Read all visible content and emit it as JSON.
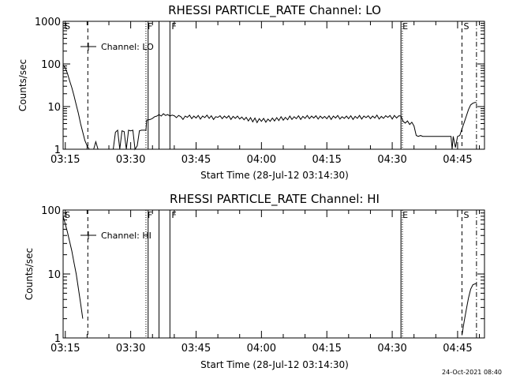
{
  "footer": {
    "timestamp": "24-Oct-2021 08:40"
  },
  "chart_data": [
    {
      "type": "line",
      "title": "RHESSI PARTICLE_RATE Channel: LO",
      "xlabel": "Start Time (28-Jul-12 03:14:30)",
      "ylabel": "Counts/sec",
      "xlim": [
        "03:14:30",
        "04:51:10"
      ],
      "ylim": [
        1,
        1000
      ],
      "yscale": "log",
      "grid": false,
      "legend": {
        "position": "top-left",
        "label": "Channel: LO"
      },
      "x_ticks": [
        "03:15",
        "03:30",
        "03:45",
        "04:00",
        "04:15",
        "04:30",
        "04:45"
      ],
      "y_ticks": [
        "1",
        "10",
        "100",
        "1000"
      ],
      "markers": [
        {
          "time": "03:20:10",
          "label": "",
          "style": "dashed"
        },
        {
          "time": "03:33:30",
          "label": "F",
          "style": "dotted"
        },
        {
          "time": "03:34:00",
          "label": "",
          "style": "solid"
        },
        {
          "time": "03:36:30",
          "label": "",
          "style": "solid"
        },
        {
          "time": "03:39:00",
          "label": "F",
          "style": "solid"
        },
        {
          "time": "04:32:00",
          "label": "E",
          "style": "solid"
        },
        {
          "time": "04:32:20",
          "label": "",
          "style": "dotted"
        },
        {
          "time": "04:46:00",
          "label": "S",
          "style": "dashed"
        },
        {
          "time": "04:49:20",
          "label": "",
          "style": "dashdot"
        }
      ],
      "edge_labels": [
        {
          "label": "S",
          "side": "left"
        }
      ],
      "series": [
        {
          "segments": [
            [
              [
                "03:14:30",
                95
              ],
              [
                "03:15:00",
                80
              ],
              [
                "03:15:30",
                60
              ],
              [
                "03:16:00",
                40
              ],
              [
                "03:16:30",
                28
              ],
              [
                "03:17:00",
                18
              ],
              [
                "03:17:30",
                11
              ],
              [
                "03:18:00",
                7
              ],
              [
                "03:18:30",
                4
              ],
              [
                "03:19:00",
                2.5
              ],
              [
                "03:19:30",
                1.6
              ],
              [
                "03:20:00",
                1.2
              ],
              [
                "03:20:30",
                1
              ]
            ],
            [
              [
                "03:21:30",
                1
              ],
              [
                "03:22:00",
                1.5
              ],
              [
                "03:22:30",
                1
              ]
            ],
            [
              [
                "03:26:00",
                1
              ],
              [
                "03:26:30",
                2.5
              ],
              [
                "03:27:00",
                2.8
              ],
              [
                "03:27:30",
                1
              ],
              [
                "03:28:00",
                2.7
              ],
              [
                "03:28:30",
                2.6
              ],
              [
                "03:29:00",
                1
              ],
              [
                "03:29:30",
                2.8
              ],
              [
                "03:30:00",
                2.7
              ],
              [
                "03:30:30",
                2.8
              ],
              [
                "03:31:00",
                1
              ],
              [
                "03:31:30",
                1.2
              ],
              [
                "03:32:00",
                2.7
              ],
              [
                "03:32:30",
                2.8
              ],
              [
                "03:33:30",
                2.8
              ],
              [
                "03:33:40",
                4.8
              ],
              [
                "03:34:30",
                5
              ],
              [
                "03:35:00",
                5.3
              ],
              [
                "03:35:30",
                5.8
              ],
              [
                "03:36:00",
                6
              ],
              [
                "03:36:30",
                6.5
              ],
              [
                "03:37:00",
                6
              ],
              [
                "03:37:30",
                6.8
              ],
              [
                "03:38:00",
                6.2
              ],
              [
                "03:38:30",
                6.5
              ],
              [
                "03:39:00",
                6
              ],
              [
                "03:39:30",
                6.3
              ],
              [
                "03:40:00",
                6.1
              ],
              [
                "03:40:30",
                5.5
              ],
              [
                "03:41:00",
                6.2
              ],
              [
                "03:41:30",
                5.8
              ],
              [
                "03:42:00",
                5
              ],
              [
                "03:42:30",
                6
              ],
              [
                "03:43:00",
                5.6
              ],
              [
                "03:43:30",
                6.3
              ],
              [
                "03:44:00",
                5.2
              ],
              [
                "03:44:30",
                6
              ],
              [
                "03:45:00",
                5.4
              ],
              [
                "03:45:30",
                6.2
              ],
              [
                "03:46:00",
                5.1
              ],
              [
                "03:46:30",
                6
              ],
              [
                "03:47:00",
                5.5
              ],
              [
                "03:47:30",
                6.3
              ],
              [
                "03:48:00",
                5.3
              ],
              [
                "03:48:30",
                6.1
              ],
              [
                "03:49:00",
                5
              ],
              [
                "03:49:30",
                5.8
              ],
              [
                "03:50:00",
                5.6
              ],
              [
                "03:50:30",
                6.1
              ],
              [
                "03:51:00",
                5.2
              ],
              [
                "03:51:30",
                6
              ],
              [
                "03:52:00",
                5.4
              ],
              [
                "03:52:30",
                6.1
              ],
              [
                "03:53:00",
                5
              ],
              [
                "03:53:30",
                5.9
              ],
              [
                "03:54:00",
                5.3
              ],
              [
                "03:54:30",
                6
              ],
              [
                "03:55:00",
                5.1
              ],
              [
                "03:55:30",
                5.7
              ],
              [
                "03:56:00",
                4.9
              ],
              [
                "03:56:30",
                5.6
              ],
              [
                "03:57:00",
                4.6
              ],
              [
                "03:57:30",
                5.5
              ],
              [
                "03:58:00",
                4.4
              ],
              [
                "03:58:30",
                5.4
              ],
              [
                "03:59:00",
                4.2
              ],
              [
                "03:59:30",
                5.2
              ],
              [
                "04:00:00",
                4.5
              ],
              [
                "04:00:30",
                5.3
              ],
              [
                "04:01:00",
                4.3
              ],
              [
                "04:01:30",
                5.1
              ],
              [
                "04:02:00",
                4.5
              ],
              [
                "04:02:30",
                5.4
              ],
              [
                "04:03:00",
                4.6
              ],
              [
                "04:03:30",
                5.5
              ],
              [
                "04:04:00",
                4.7
              ],
              [
                "04:04:30",
                5.8
              ],
              [
                "04:05:00",
                4.8
              ],
              [
                "04:05:30",
                5.6
              ],
              [
                "04:06:00",
                4.9
              ],
              [
                "04:06:30",
                6
              ],
              [
                "04:07:00",
                5
              ],
              [
                "04:07:30",
                5.8
              ],
              [
                "04:08:00",
                5.2
              ],
              [
                "04:08:30",
                6.1
              ],
              [
                "04:09:00",
                5
              ],
              [
                "04:09:30",
                5.9
              ],
              [
                "04:10:00",
                5.3
              ],
              [
                "04:10:30",
                6.2
              ],
              [
                "04:11:00",
                5.2
              ],
              [
                "04:11:30",
                6
              ],
              [
                "04:12:00",
                5.4
              ],
              [
                "04:12:30",
                6.1
              ],
              [
                "04:13:00",
                5.1
              ],
              [
                "04:13:30",
                6
              ],
              [
                "04:14:00",
                5.3
              ],
              [
                "04:14:30",
                5.9
              ],
              [
                "04:15:00",
                5.2
              ],
              [
                "04:15:30",
                6.1
              ],
              [
                "04:16:00",
                5
              ],
              [
                "04:16:30",
                6
              ],
              [
                "04:17:00",
                5.4
              ],
              [
                "04:17:30",
                6.2
              ],
              [
                "04:18:00",
                5.1
              ],
              [
                "04:18:30",
                5.8
              ],
              [
                "04:19:00",
                5.3
              ],
              [
                "04:19:30",
                6
              ],
              [
                "04:20:00",
                5.2
              ],
              [
                "04:20:30",
                6.1
              ],
              [
                "04:21:00",
                5
              ],
              [
                "04:21:30",
                5.9
              ],
              [
                "04:22:00",
                5.3
              ],
              [
                "04:22:30",
                6.2
              ],
              [
                "04:23:00",
                5.1
              ],
              [
                "04:23:30",
                6
              ],
              [
                "04:24:00",
                5.5
              ],
              [
                "04:24:30",
                6.1
              ],
              [
                "04:25:00",
                5.2
              ],
              [
                "04:25:30",
                6
              ],
              [
                "04:26:00",
                5.4
              ],
              [
                "04:26:30",
                6.3
              ],
              [
                "04:27:00",
                5.1
              ],
              [
                "04:27:30",
                5.9
              ],
              [
                "04:28:00",
                5.3
              ],
              [
                "04:28:30",
                6.1
              ],
              [
                "04:29:00",
                5.6
              ],
              [
                "04:29:30",
                6.2
              ],
              [
                "04:30:00",
                5.1
              ],
              [
                "04:30:30",
                6.2
              ],
              [
                "04:31:00",
                5.4
              ],
              [
                "04:31:30",
                6.1
              ],
              [
                "04:32:00",
                6
              ],
              [
                "04:32:30",
                4.5
              ],
              [
                "04:33:00",
                4.1
              ],
              [
                "04:33:30",
                4.6
              ],
              [
                "04:34:00",
                3.8
              ],
              [
                "04:34:30",
                4.3
              ],
              [
                "04:35:00",
                3.5
              ],
              [
                "04:35:30",
                2.1
              ],
              [
                "04:36:00",
                2
              ],
              [
                "04:36:30",
                2.1
              ],
              [
                "04:37:00",
                2
              ],
              [
                "04:37:30",
                2
              ],
              [
                "04:38:00",
                2
              ],
              [
                "04:38:30",
                2
              ],
              [
                "04:39:00",
                2
              ],
              [
                "04:39:30",
                2
              ],
              [
                "04:40:00",
                2
              ],
              [
                "04:40:30",
                2
              ],
              [
                "04:41:00",
                2
              ],
              [
                "04:41:30",
                2
              ],
              [
                "04:42:00",
                2
              ],
              [
                "04:42:30",
                2
              ],
              [
                "04:43:00",
                2
              ],
              [
                "04:43:30",
                2
              ],
              [
                "04:43:45",
                1
              ],
              [
                "04:44:00",
                2
              ],
              [
                "04:44:30",
                1.1
              ],
              [
                "04:45:00",
                2
              ],
              [
                "04:45:30",
                2.1
              ],
              [
                "04:46:00",
                3
              ],
              [
                "04:46:30",
                4.2
              ],
              [
                "04:47:00",
                6
              ],
              [
                "04:47:30",
                8.5
              ],
              [
                "04:48:00",
                11
              ],
              [
                "04:48:30",
                12
              ],
              [
                "04:49:00",
                12.5
              ],
              [
                "04:49:20",
                12.5
              ]
            ]
          ]
        }
      ]
    },
    {
      "type": "line",
      "title": "RHESSI PARTICLE_RATE Channel: HI",
      "xlabel": "Start Time (28-Jul-12 03:14:30)",
      "ylabel": "Counts/sec",
      "xlim": [
        "03:14:30",
        "04:51:10"
      ],
      "ylim": [
        1,
        100
      ],
      "yscale": "log",
      "grid": false,
      "legend": {
        "position": "top-left",
        "label": "Channel: HI"
      },
      "x_ticks": [
        "03:15",
        "03:30",
        "03:45",
        "04:00",
        "04:15",
        "04:30",
        "04:45"
      ],
      "y_ticks": [
        "1",
        "10",
        "100"
      ],
      "markers": [
        {
          "time": "03:20:10",
          "label": "",
          "style": "dashed"
        },
        {
          "time": "03:33:30",
          "label": "F",
          "style": "dotted"
        },
        {
          "time": "03:34:00",
          "label": "",
          "style": "solid"
        },
        {
          "time": "03:36:30",
          "label": "",
          "style": "solid"
        },
        {
          "time": "03:39:00",
          "label": "F",
          "style": "solid"
        },
        {
          "time": "04:32:00",
          "label": "E",
          "style": "solid"
        },
        {
          "time": "04:32:20",
          "label": "",
          "style": "dotted"
        },
        {
          "time": "04:46:00",
          "label": "S",
          "style": "dashed"
        },
        {
          "time": "04:49:20",
          "label": "",
          "style": "dashdot"
        }
      ],
      "edge_labels": [
        {
          "label": "S",
          "side": "left"
        }
      ],
      "series": [
        {
          "segments": [
            [
              [
                "03:14:30",
                80
              ],
              [
                "03:15:00",
                60
              ],
              [
                "03:15:30",
                45
              ],
              [
                "03:16:00",
                32
              ],
              [
                "03:16:30",
                23
              ],
              [
                "03:17:00",
                15
              ],
              [
                "03:17:30",
                10
              ],
              [
                "03:18:00",
                6
              ],
              [
                "03:18:30",
                3.5
              ],
              [
                "03:19:00",
                2
              ]
            ],
            [
              [
                "04:46:00",
                1.1
              ],
              [
                "04:46:30",
                1.8
              ],
              [
                "04:47:00",
                2.8
              ],
              [
                "04:47:30",
                4.2
              ],
              [
                "04:48:00",
                5.8
              ],
              [
                "04:48:30",
                6.8
              ],
              [
                "04:49:00",
                7
              ],
              [
                "04:49:20",
                7
              ]
            ]
          ]
        }
      ]
    }
  ]
}
